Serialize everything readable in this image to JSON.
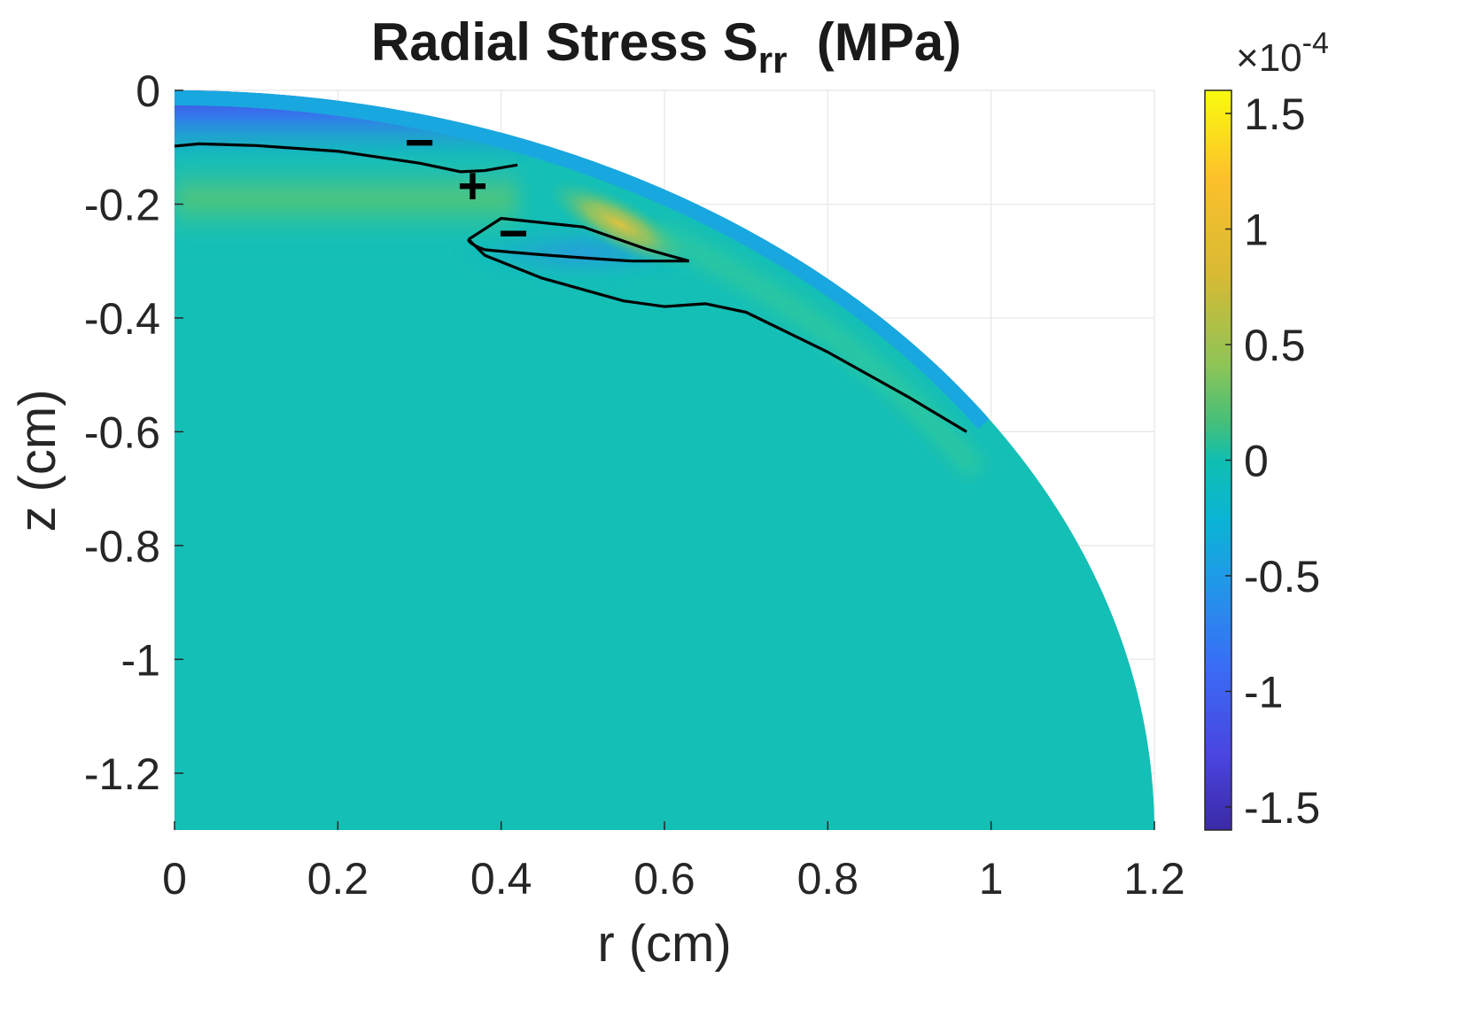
{
  "chart_data": {
    "type": "heatmap",
    "title": "Radial  Stress  S",
    "title_subscript": "rr",
    "title_suffix": "  (MPa)",
    "xlabel": "r (cm)",
    "ylabel": "z (cm)",
    "xlim": [
      0,
      1.2
    ],
    "ylim": [
      -1.3,
      0
    ],
    "x_ticks": [
      "0",
      "0.2",
      "0.4",
      "0.6",
      "0.8",
      "1",
      "1.2"
    ],
    "x_tick_values": [
      0,
      0.2,
      0.4,
      0.6,
      0.8,
      1.0,
      1.2
    ],
    "y_ticks": [
      "0",
      "-0.2",
      "-0.4",
      "-0.6",
      "-0.8",
      "-1",
      "-1.2"
    ],
    "y_tick_values": [
      0,
      -0.2,
      -0.4,
      -0.6,
      -0.8,
      -1.0,
      -1.2
    ],
    "grid": true,
    "colormap": "parula",
    "colorbar": {
      "multiplier_base": "×10",
      "multiplier_exp": "-4",
      "range": [
        -1.6,
        1.6
      ],
      "ticks": [
        "1.5",
        "1",
        "0.5",
        "0",
        "-0.5",
        "-1",
        "-1.5"
      ],
      "tick_values": [
        1.5,
        1.0,
        0.5,
        0,
        -0.5,
        -1.0,
        -1.5
      ]
    },
    "domain_boundary": {
      "shape": "ellipse quadrant",
      "semi_axis_r": 1.2,
      "semi_axis_z": 1.3
    },
    "zero_contours": [
      {
        "r": [
          0,
          0.03,
          0.1,
          0.2,
          0.3,
          0.35,
          0.38,
          0.42
        ],
        "z": [
          -0.098,
          -0.094,
          -0.097,
          -0.107,
          -0.128,
          -0.143,
          -0.141,
          -0.131
        ]
      },
      {
        "r": [
          0.36,
          0.4,
          0.5,
          0.58,
          0.63
        ],
        "z": [
          -0.262,
          -0.225,
          -0.24,
          -0.28,
          -0.3
        ]
      },
      {
        "r": [
          0.36,
          0.38,
          0.45,
          0.55,
          0.6,
          0.65,
          0.7,
          0.8,
          0.9,
          0.97
        ],
        "z": [
          -0.262,
          -0.29,
          -0.33,
          -0.37,
          -0.38,
          -0.375,
          -0.39,
          -0.46,
          -0.54,
          -0.6
        ]
      }
    ],
    "region_signs": [
      {
        "sign": "−",
        "r": 0.3,
        "z": -0.098
      },
      {
        "sign": "+",
        "r": 0.365,
        "z": -0.175
      },
      {
        "sign": "−",
        "r": 0.415,
        "z": -0.258
      }
    ],
    "features": [
      {
        "region": "top surface band near r=0",
        "value_x1e-4": -1.5
      },
      {
        "region": "band near z=-0.18 at r<0.3",
        "value_x1e-4": 0.5
      },
      {
        "region": "peak near r=0.55, z=-0.23",
        "value_x1e-4": 1.2
      },
      {
        "region": "pocket near r=0.5, z=-0.28",
        "value_x1e-4": -0.6
      },
      {
        "region": "bulk interior",
        "value_x1e-4": 0.0
      }
    ]
  }
}
